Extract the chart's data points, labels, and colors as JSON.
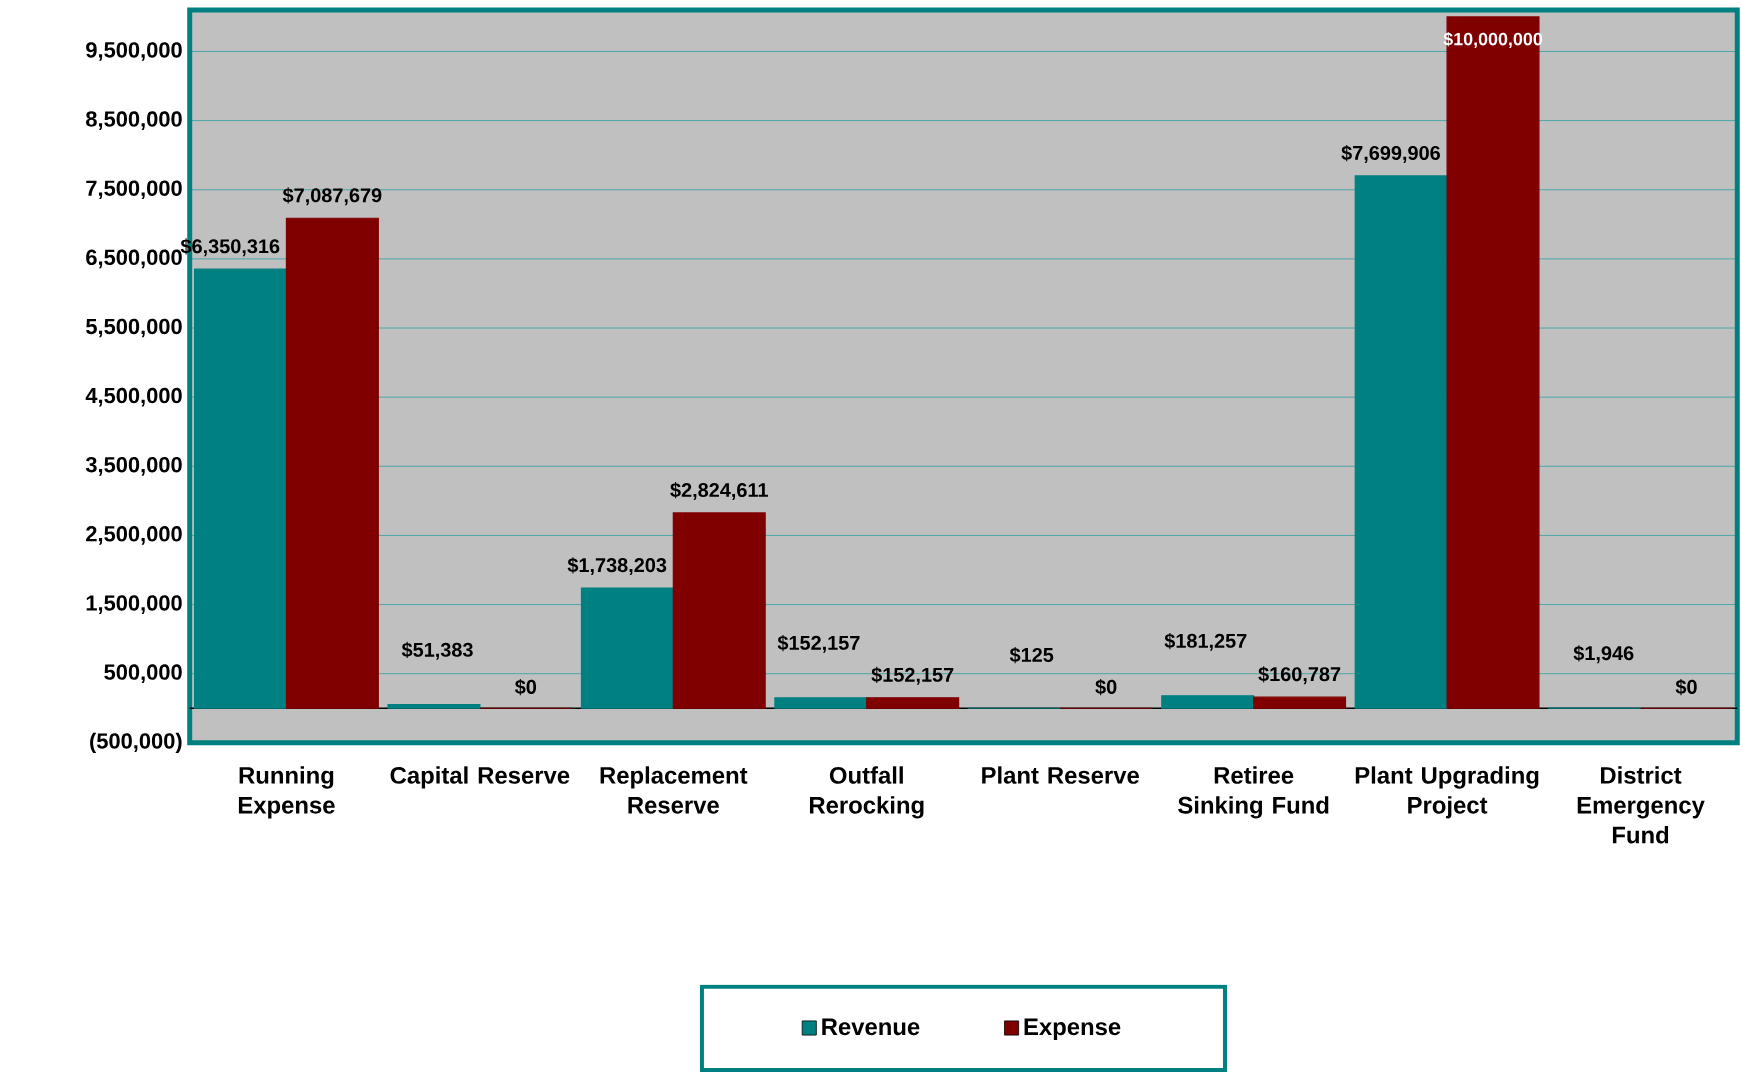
{
  "chart_data": {
    "type": "bar",
    "categories": [
      "Running Expense",
      "Capital Reserve",
      "Replacement Reserve",
      "Outfall Rerocking",
      "Plant Reserve",
      "Retiree Sinking Fund",
      "Plant Upgrading Project",
      "District Emergency Fund"
    ],
    "series": [
      {
        "name": "Revenue",
        "color": "#008080",
        "values": [
          6350316,
          51383,
          1738203,
          152157,
          125,
          181257,
          7699906,
          1946
        ],
        "value_labels": [
          "$6,350,316",
          "$51,383",
          "$1,738,203",
          "$152,157",
          "$125",
          "$181,257",
          "$7,699,906",
          "$1,946"
        ]
      },
      {
        "name": "Expense",
        "color": "#800000",
        "values": [
          7087679,
          0,
          2824611,
          152157,
          0,
          160787,
          10000000,
          0
        ],
        "value_labels": [
          "$7,087,679",
          "$0",
          "$2,824,611",
          "$152,157",
          "$0",
          "$160,787",
          "$10,000,000",
          "$0"
        ]
      }
    ],
    "ylim": [
      -500000,
      10100000
    ],
    "yticks": [
      {
        "value": -500000,
        "label": "(500,000)"
      },
      {
        "value": 500000,
        "label": "500,000"
      },
      {
        "value": 1500000,
        "label": "1,500,000"
      },
      {
        "value": 2500000,
        "label": "2,500,000"
      },
      {
        "value": 3500000,
        "label": "3,500,000"
      },
      {
        "value": 4500000,
        "label": "4,500,000"
      },
      {
        "value": 5500000,
        "label": "5,500,000"
      },
      {
        "value": 6500000,
        "label": "6,500,000"
      },
      {
        "value": 7500000,
        "label": "7,500,000"
      },
      {
        "value": 8500000,
        "label": "8,500,000"
      },
      {
        "value": 9500000,
        "label": "9,500,000"
      }
    ],
    "grid": "y",
    "legend": "bottom"
  }
}
